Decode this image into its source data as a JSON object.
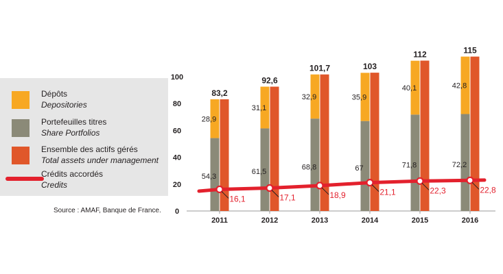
{
  "chart_data": {
    "type": "bar",
    "categories": [
      "2011",
      "2012",
      "2013",
      "2014",
      "2015",
      "2016"
    ],
    "stacked_series": [
      {
        "name": "Portefeuilles titres",
        "name_en": "Share Portfolios",
        "color": "#8b8a78",
        "values": [
          54.3,
          61.5,
          68.8,
          67,
          71.8,
          72.2
        ],
        "labels": [
          "54,3",
          "61,5",
          "68,8",
          "67",
          "71,8",
          "72,2"
        ]
      },
      {
        "name": "Dépôts",
        "name_en": "Depositories",
        "color": "#f7a823",
        "values": [
          28.9,
          31.1,
          32.9,
          35.9,
          40.1,
          42.8
        ],
        "labels": [
          "28,9",
          "31,1",
          "32,9",
          "35,9",
          "40,1",
          "42,8"
        ]
      }
    ],
    "total_series": {
      "name": "Ensemble des actifs gérés",
      "name_en": "Total assets under management",
      "color": "#e0572a",
      "values": [
        83.2,
        92.6,
        101.7,
        103,
        112,
        115
      ],
      "labels": [
        "83,2",
        "92,6",
        "101,7",
        "103",
        "112",
        "115"
      ]
    },
    "line_series": {
      "name": "Crédits accordés",
      "name_en": "Credits",
      "color": "#e3212d",
      "values": [
        16.1,
        17.1,
        18.9,
        21.1,
        22.3,
        22.8
      ],
      "labels": [
        "16,1",
        "17,1",
        "18,9",
        "21,1",
        "22,3",
        "22,8"
      ]
    },
    "yticks": [
      "0",
      "20",
      "40",
      "60",
      "80",
      "100"
    ],
    "ylim": [
      0,
      115
    ],
    "grid": false,
    "legend_position": "left"
  },
  "legend": {
    "depots": {
      "fr": "Dépôts",
      "en": "Depositories",
      "color": "#f7a823"
    },
    "portefeuilles": {
      "fr": "Portefeuilles titres",
      "en": "Share Portfolios",
      "color": "#8b8a78"
    },
    "actifs": {
      "fr": "Ensemble des actifs gérés",
      "en": "Total assets under management",
      "color": "#e0572a"
    },
    "credits": {
      "fr": "Crédits accordés",
      "en": "Credits",
      "color": "#e3212d"
    }
  },
  "source": "Source : AMAF, Banque de France."
}
